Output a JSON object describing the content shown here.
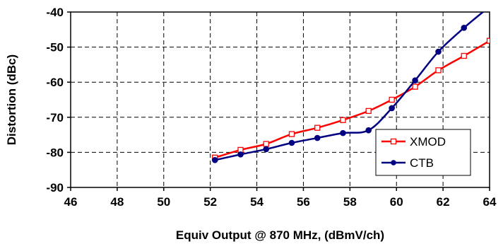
{
  "chart_data": {
    "type": "line",
    "xlabel": "Equiv Output @ 870 MHz, (dBmV/ch)",
    "ylabel": "Distortion (dBc)",
    "xlim": [
      46,
      64
    ],
    "ylim": [
      -90,
      -40
    ],
    "x_ticks": [
      46,
      48,
      50,
      52,
      54,
      56,
      58,
      60,
      62,
      64
    ],
    "y_ticks": [
      -40,
      -50,
      -60,
      -70,
      -80,
      -90
    ],
    "grid": true,
    "grid_style": "dashed",
    "legend_position": "bottom-right",
    "series": [
      {
        "name": "XMOD",
        "color": "#ff0000",
        "marker": "open-square",
        "x": [
          52.2,
          53.3,
          54.4,
          55.5,
          56.6,
          57.7,
          58.8,
          59.8,
          60.8,
          61.8,
          62.9,
          64.0
        ],
        "y": [
          -81.5,
          -79.3,
          -77.6,
          -74.8,
          -73.0,
          -70.8,
          -68.2,
          -65.0,
          -61.3,
          -56.6,
          -52.5,
          -48.2
        ]
      },
      {
        "name": "CTB",
        "color": "#000080",
        "marker": "filled-circle",
        "x": [
          52.2,
          53.3,
          54.4,
          55.5,
          56.6,
          57.7,
          58.8,
          59.8,
          60.8,
          61.8,
          62.9,
          63.9
        ],
        "y": [
          -82.2,
          -80.6,
          -79.1,
          -77.3,
          -75.9,
          -74.5,
          -73.7,
          -67.4,
          -59.5,
          -51.3,
          -44.5,
          -39.0
        ]
      }
    ]
  }
}
